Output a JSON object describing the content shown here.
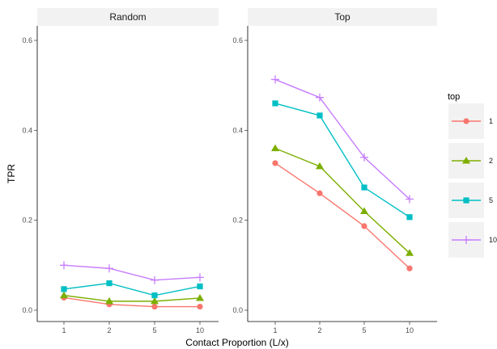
{
  "chart_data": {
    "type": "line",
    "ylabel": "TPR",
    "xlabel": "Contact Proportion (L/x)",
    "x_categories": [
      "1",
      "2",
      "5",
      "10"
    ],
    "ylim": [
      0,
      0.6
    ],
    "yticks": [
      "0.0",
      "0.2",
      "0.4",
      "0.6"
    ],
    "grid": false,
    "legend": {
      "title": "top",
      "placement": "right",
      "entries": [
        {
          "label": "1",
          "color": "#F8766D",
          "marker": "circle"
        },
        {
          "label": "2",
          "color": "#7CAE00",
          "marker": "triangle"
        },
        {
          "label": "5",
          "color": "#00BFC4",
          "marker": "square"
        },
        {
          "label": "10",
          "color": "#C77CFF",
          "marker": "plus"
        }
      ]
    },
    "panels": [
      {
        "title": "Random",
        "series": [
          {
            "name": "1",
            "values": [
              0.028,
              0.013,
              0.008,
              0.008
            ]
          },
          {
            "name": "2",
            "values": [
              0.033,
              0.02,
              0.02,
              0.027
            ]
          },
          {
            "name": "5",
            "values": [
              0.047,
              0.06,
              0.033,
              0.053
            ]
          },
          {
            "name": "10",
            "values": [
              0.1,
              0.093,
              0.067,
              0.073
            ]
          }
        ]
      },
      {
        "title": "Top",
        "series": [
          {
            "name": "1",
            "values": [
              0.327,
              0.26,
              0.187,
              0.093
            ]
          },
          {
            "name": "2",
            "values": [
              0.36,
              0.32,
              0.22,
              0.127
            ]
          },
          {
            "name": "5",
            "values": [
              0.46,
              0.433,
              0.273,
              0.207
            ]
          },
          {
            "name": "10",
            "values": [
              0.513,
              0.473,
              0.34,
              0.247
            ]
          }
        ]
      }
    ]
  }
}
